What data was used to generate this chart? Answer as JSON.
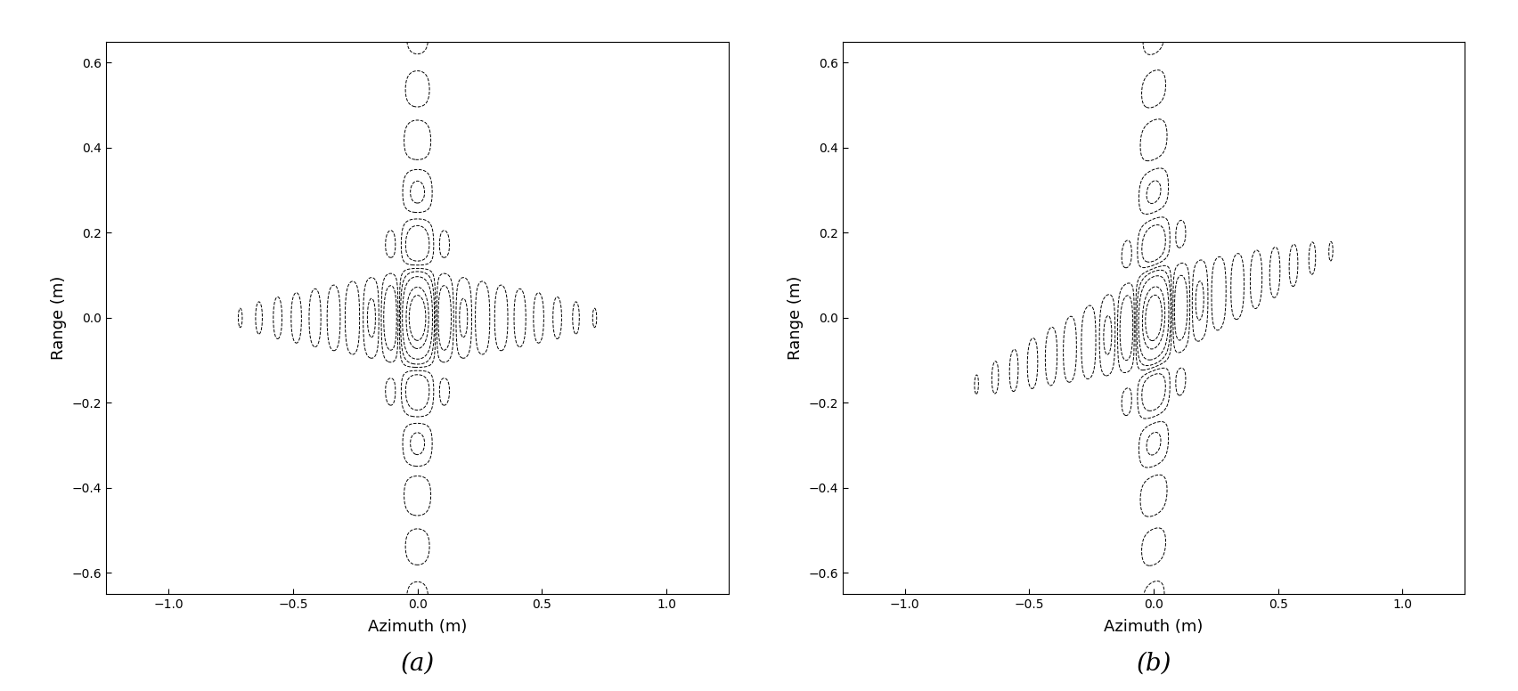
{
  "xlim": [
    -1.25,
    1.25
  ],
  "ylim": [
    -0.65,
    0.65
  ],
  "xlabel": "Azimuth (m)",
  "ylabel": "Range (m)",
  "label_a": "(a)",
  "label_b": "(b)",
  "xticks": [
    -1.0,
    -0.5,
    0.0,
    0.5,
    1.0
  ],
  "yticks": [
    -0.6,
    -0.4,
    -0.2,
    0.0,
    0.2,
    0.4,
    0.6
  ],
  "background_color": "#ffffff",
  "line_color": "#000000",
  "figsize": [
    17.04,
    7.76
  ],
  "dpi": 100,
  "az_res_a": 0.075,
  "rng_res_a": 0.12,
  "az_res_b": 0.075,
  "rng_res_b": 0.12,
  "rng_walk_b": 0.22,
  "contour_levels_db": [
    -30,
    -20,
    -13,
    -6,
    -3
  ]
}
